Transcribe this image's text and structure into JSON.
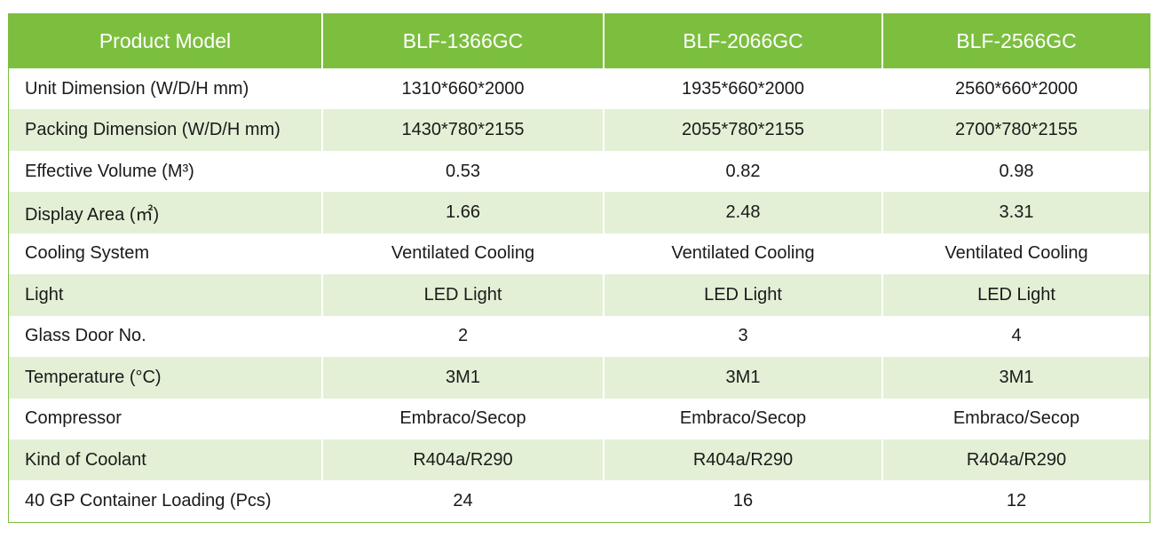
{
  "header": {
    "label": "Product Model",
    "models": [
      "BLF-1366GC",
      "BLF-2066GC",
      "BLF-2566GC"
    ]
  },
  "rows": [
    {
      "label": "Unit Dimension (W/D/H mm)",
      "values": [
        "1310*660*2000",
        "1935*660*2000",
        "2560*660*2000"
      ]
    },
    {
      "label": "Packing Dimension (W/D/H mm)",
      "values": [
        "1430*780*2155",
        "2055*780*2155",
        "2700*780*2155"
      ]
    },
    {
      "label": "Effective Volume (M³)",
      "values": [
        "0.53",
        "0.82",
        "0.98"
      ]
    },
    {
      "label": "Display Area (㎡)",
      "values": [
        "1.66",
        "2.48",
        "3.31"
      ]
    },
    {
      "label": "Cooling System",
      "values": [
        "Ventilated Cooling",
        "Ventilated Cooling",
        "Ventilated Cooling"
      ]
    },
    {
      "label": "Light",
      "values": [
        "LED Light",
        "LED Light",
        "LED Light"
      ]
    },
    {
      "label": "Glass Door No.",
      "values": [
        "2",
        "3",
        "4"
      ]
    },
    {
      "label": "Temperature (°C)",
      "values": [
        "3M1",
        "3M1",
        "3M1"
      ]
    },
    {
      "label": "Compressor",
      "values": [
        "Embraco/Secop",
        "Embraco/Secop",
        "Embraco/Secop"
      ]
    },
    {
      "label": "Kind of Coolant",
      "values": [
        "R404a/R290",
        "R404a/R290",
        "R404a/R290"
      ]
    },
    {
      "label": "40 GP Container Loading (Pcs)",
      "values": [
        "24",
        "16",
        "12"
      ]
    }
  ],
  "colors": {
    "header_bg": "#7cbf3f",
    "stripe_bg": "#e3f0d6"
  }
}
